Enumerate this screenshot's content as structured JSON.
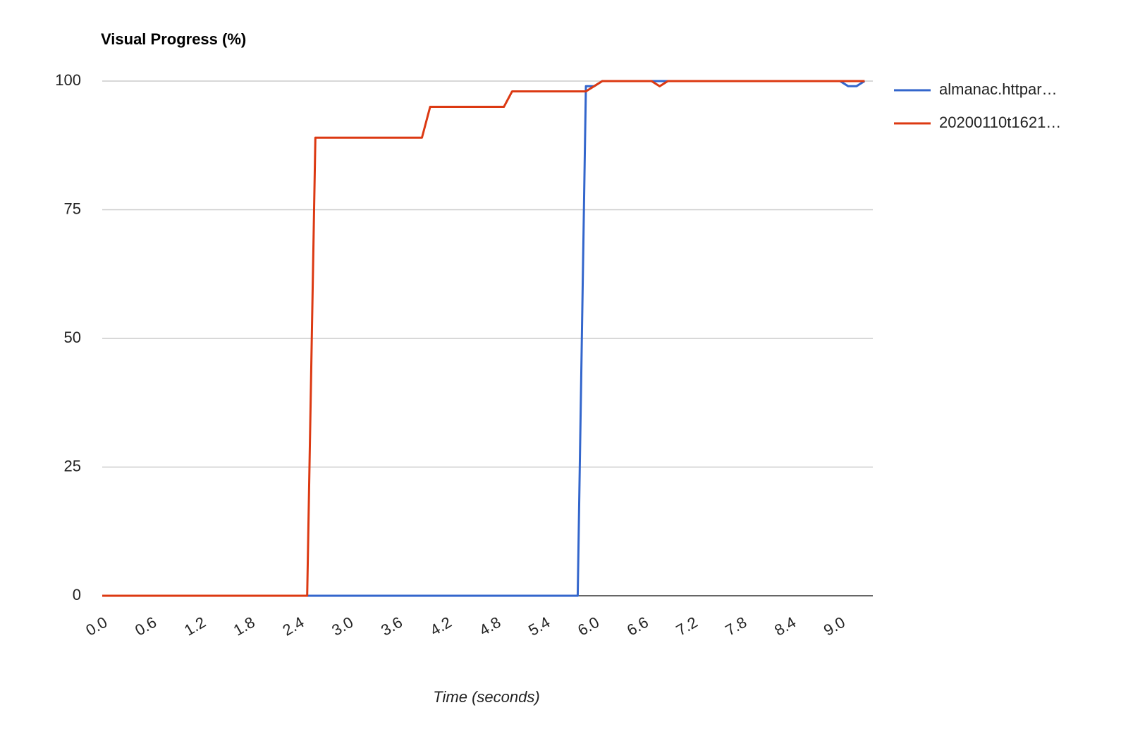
{
  "chart_data": {
    "type": "line",
    "title": "Visual Progress (%)",
    "x_label": "Time (seconds)",
    "x": [
      0,
      2.5,
      2.6,
      3.9,
      4.0,
      4.9,
      5.0,
      5.8,
      5.9,
      6.0,
      6.1,
      6.7,
      6.8,
      6.9,
      9.0,
      9.1,
      9.2,
      9.3
    ],
    "series": [
      {
        "name": "almanac.httpar…",
        "color": "#3366cc",
        "values": [
          0,
          0,
          0,
          0,
          0,
          0,
          0,
          0,
          99,
          99,
          100,
          100,
          100,
          100,
          100,
          99,
          99,
          100
        ]
      },
      {
        "name": "20200110t1621…",
        "color": "#dc3912",
        "values": [
          0,
          0,
          89,
          89,
          95,
          95,
          98,
          98,
          98,
          99,
          100,
          100,
          99,
          100,
          100,
          100,
          100,
          100
        ]
      }
    ],
    "xlim": [
      0,
      9.4
    ],
    "xticks": [
      {
        "value": 0,
        "label": "0.0"
      },
      0.6,
      1.2,
      1.8,
      2.4,
      {
        "value": 3,
        "label": "3.0"
      },
      3.6,
      4.2,
      4.8,
      5.4,
      {
        "value": 6,
        "label": "6.0"
      },
      6.6,
      7.2,
      7.8,
      8.4,
      {
        "value": 9,
        "label": "9.0"
      }
    ],
    "ylim": [
      0,
      100
    ],
    "yticks": [
      0,
      25,
      50,
      75,
      100
    ],
    "grid": true,
    "legend": "right"
  }
}
